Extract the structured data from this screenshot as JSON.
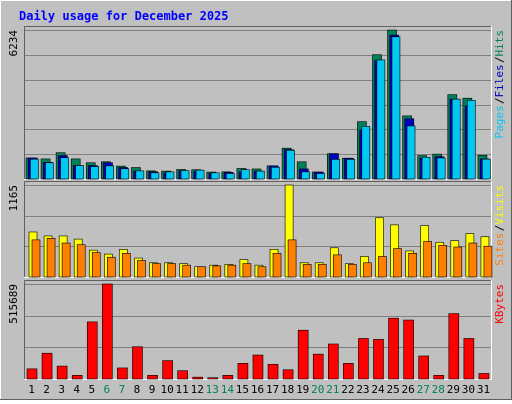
{
  "chart_data": [
    {
      "type": "bar",
      "panel": "hits-files-pages",
      "title": "Daily usage for December 2025",
      "categories": [
        "1",
        "2",
        "3",
        "4",
        "5",
        "6",
        "7",
        "8",
        "9",
        "10",
        "11",
        "12",
        "13",
        "14",
        "15",
        "16",
        "17",
        "18",
        "19",
        "20",
        "21",
        "22",
        "23",
        "24",
        "25",
        "26",
        "27",
        "28",
        "29",
        "30",
        "31"
      ],
      "weekend_days": [
        "6",
        "7",
        "13",
        "14",
        "20",
        "21",
        "27",
        "28"
      ],
      "ylabel_max": "6234",
      "ylim": [
        0,
        6234
      ],
      "legend": [
        "Pages",
        "Files",
        "Hits"
      ],
      "legend_position": "right-vertical",
      "grid": true,
      "series": [
        {
          "name": "Hits",
          "color": "#00805c",
          "values": [
            880,
            840,
            1100,
            840,
            680,
            720,
            540,
            480,
            340,
            330,
            400,
            390,
            290,
            300,
            440,
            420,
            550,
            1290,
            720,
            290,
            1060,
            870,
            2400,
            5200,
            6234,
            2640,
            980,
            1040,
            3530,
            3380,
            990
          ]
        },
        {
          "name": "Files",
          "color": "#0000c0",
          "values": [
            880,
            700,
            980,
            560,
            560,
            680,
            480,
            330,
            300,
            250,
            340,
            320,
            230,
            280,
            300,
            330,
            550,
            1230,
            420,
            290,
            1060,
            870,
            2050,
            4950,
            6020,
            2520,
            870,
            930,
            3340,
            3060,
            840
          ]
        },
        {
          "name": "Pages",
          "color": "#00c8f0",
          "values": [
            830,
            680,
            890,
            560,
            520,
            550,
            430,
            340,
            260,
            300,
            350,
            370,
            260,
            230,
            390,
            330,
            490,
            1200,
            300,
            230,
            820,
            820,
            2200,
            4980,
            5950,
            2220,
            910,
            880,
            3340,
            3290,
            830
          ]
        }
      ]
    },
    {
      "type": "bar",
      "panel": "visits-sites",
      "categories": [
        "1",
        "2",
        "3",
        "4",
        "5",
        "6",
        "7",
        "8",
        "9",
        "10",
        "11",
        "12",
        "13",
        "14",
        "15",
        "16",
        "17",
        "18",
        "19",
        "20",
        "21",
        "22",
        "23",
        "24",
        "25",
        "26",
        "27",
        "28",
        "29",
        "30",
        "31"
      ],
      "ylabel_max": "1165",
      "ylim": [
        0,
        1165
      ],
      "legend": [
        "Sites",
        "Visits"
      ],
      "legend_position": "right-vertical",
      "grid": true,
      "series": [
        {
          "name": "Visits",
          "color": "#ffff00",
          "values": [
            570,
            520,
            520,
            480,
            340,
            290,
            350,
            240,
            180,
            180,
            170,
            130,
            150,
            160,
            220,
            150,
            350,
            1165,
            180,
            180,
            370,
            170,
            260,
            750,
            660,
            330,
            650,
            440,
            460,
            550,
            510
          ]
        },
        {
          "name": "Sites",
          "color": "#ff8000",
          "values": [
            470,
            490,
            430,
            410,
            310,
            250,
            300,
            210,
            170,
            170,
            150,
            130,
            140,
            150,
            170,
            130,
            300,
            470,
            160,
            160,
            280,
            160,
            180,
            260,
            360,
            300,
            450,
            400,
            380,
            430,
            390
          ]
        }
      ]
    },
    {
      "type": "bar",
      "panel": "kbytes",
      "categories": [
        "1",
        "2",
        "3",
        "4",
        "5",
        "6",
        "7",
        "8",
        "9",
        "10",
        "11",
        "12",
        "13",
        "14",
        "15",
        "16",
        "17",
        "18",
        "19",
        "20",
        "21",
        "22",
        "23",
        "24",
        "25",
        "26",
        "27",
        "28",
        "29",
        "30",
        "31"
      ],
      "ylabel_max": "515689",
      "ylim": [
        0,
        515689
      ],
      "legend": [
        "KBytes"
      ],
      "legend_position": "right-vertical",
      "grid": true,
      "series": [
        {
          "name": "KBytes",
          "color": "#ff0000",
          "values": [
            55000,
            140000,
            70000,
            20000,
            310000,
            515689,
            60000,
            175000,
            20000,
            100000,
            45000,
            10000,
            7000,
            20000,
            85000,
            130000,
            80000,
            50000,
            265000,
            135000,
            190000,
            85000,
            220000,
            215000,
            330000,
            320000,
            125000,
            20000,
            355000,
            220000,
            30000
          ]
        }
      ]
    }
  ],
  "colors": {
    "background": "#c0c0c0",
    "plot_background": "#c0c0c0",
    "title_color": "#0000ff",
    "weekday_label": "#000000",
    "weekend_label": "#00805c",
    "gridline": "#808080"
  }
}
